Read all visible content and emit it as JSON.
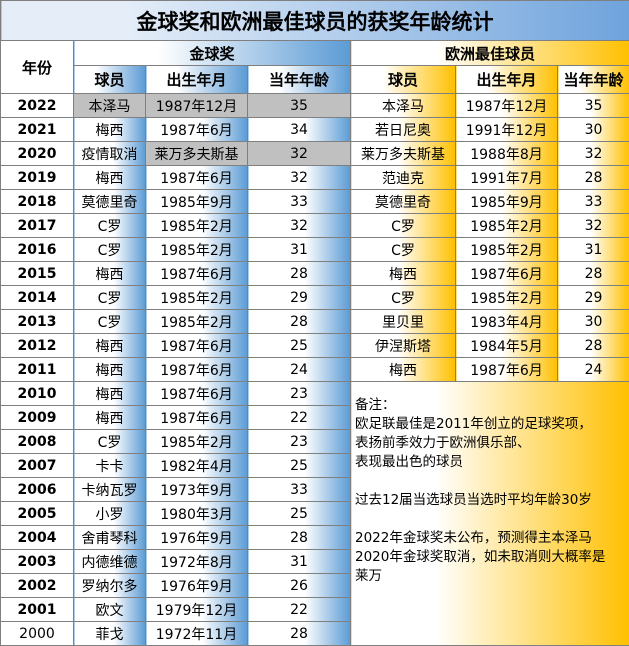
{
  "title": "金球奖和欧洲最佳球员的获奖年龄统计",
  "table": {
    "year_header": "年份",
    "groups": [
      "金球奖",
      "欧洲最佳球员"
    ],
    "columns": [
      "球员",
      "出生年月",
      "当年年龄",
      "球员",
      "出生年月",
      "当年年龄"
    ],
    "rows": [
      [
        "2022",
        "本泽马",
        "1987年12月",
        35,
        "本泽马",
        "1987年12月",
        35
      ],
      [
        "2021",
        "梅西",
        "1987年6月",
        34,
        "若日尼奥",
        "1991年12月",
        30
      ],
      [
        "2020",
        "疫情取消",
        "莱万多夫斯基",
        32,
        "莱万多夫斯基",
        "1988年8月",
        32
      ],
      [
        "2019",
        "梅西",
        "1987年6月",
        32,
        "范迪克",
        "1991年7月",
        28
      ],
      [
        "2018",
        "莫德里奇",
        "1985年9月",
        33,
        "莫德里奇",
        "1985年9月",
        33
      ],
      [
        "2017",
        "C罗",
        "1985年2月",
        32,
        "C罗",
        "1985年2月",
        32
      ],
      [
        "2016",
        "C罗",
        "1985年2月",
        31,
        "C罗",
        "1985年2月",
        31
      ],
      [
        "2015",
        "梅西",
        "1987年6月",
        28,
        "梅西",
        "1987年6月",
        28
      ],
      [
        "2014",
        "C罗",
        "1985年2月",
        29,
        "C罗",
        "1985年2月",
        29
      ],
      [
        "2013",
        "C罗",
        "1985年2月",
        28,
        "里贝里",
        "1983年4月",
        30
      ],
      [
        "2012",
        "梅西",
        "1987年6月",
        25,
        "伊涅斯塔",
        "1984年5月",
        28
      ],
      [
        "2011",
        "梅西",
        "1987年6月",
        24,
        "梅西",
        "1987年6月",
        24
      ],
      [
        "2010",
        "梅西",
        "1987年6月",
        23
      ],
      [
        "2009",
        "梅西",
        "1987年6月",
        22
      ],
      [
        "2008",
        "C罗",
        "1985年2月",
        23
      ],
      [
        "2007",
        "卡卡",
        "1982年4月",
        25
      ],
      [
        "2006",
        "卡纳瓦罗",
        "1973年9月",
        33
      ],
      [
        "2005",
        "小罗",
        "1980年3月",
        25
      ],
      [
        "2004",
        "舍甫琴科",
        "1976年9月",
        28
      ],
      [
        "2003",
        "内德维德",
        "1972年8月",
        31
      ],
      [
        "2002",
        "罗纳尔多",
        "1976年9月",
        26
      ],
      [
        "2001",
        "欧文",
        "1979年12月",
        22
      ],
      [
        "2000",
        "菲戈",
        "1972年11月",
        28
      ]
    ],
    "shaded_cells": [
      [
        0,
        1
      ],
      [
        0,
        2
      ],
      [
        0,
        3
      ],
      [
        2,
        2
      ],
      [
        2,
        3
      ]
    ],
    "note": [
      "备注：",
      "欧足联最佳是2011年创立的足球奖项，",
      "表扬前季效力于欧洲俱乐部、",
      "表现最出色的球员",
      "过去12届当选球员当选时平均年龄30岁",
      "2022年金球奖未公布，预测得主本泽马",
      "2020年金球奖取消，如未取消则大概率是",
      "莱万"
    ]
  }
}
